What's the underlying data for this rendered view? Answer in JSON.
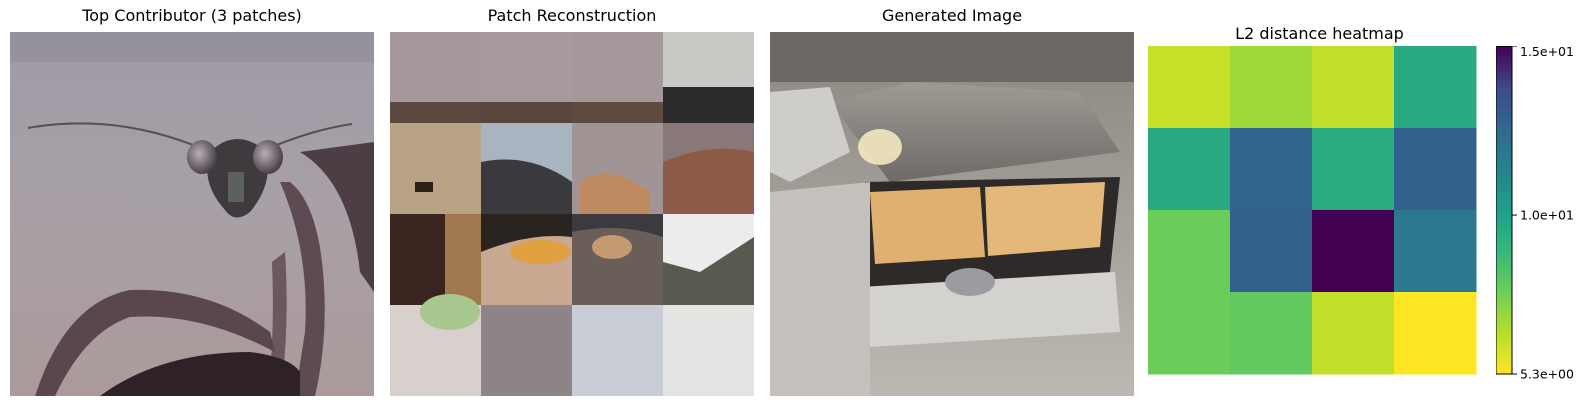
{
  "panels": {
    "top_contributor_title": "Top Contributor (3 patches)",
    "reconstruction_title": "Patch Reconstruction",
    "generated_title": "Generated Image",
    "heatmap_title": "L2 distance heatmap"
  },
  "chart_data": {
    "type": "heatmap",
    "title": "L2 distance heatmap",
    "rows": 4,
    "cols": 4,
    "values": [
      [
        6.2,
        6.9,
        6.3,
        9.6
      ],
      [
        9.6,
        12.7,
        9.5,
        12.9
      ],
      [
        7.8,
        12.9,
        15.0,
        11.8
      ],
      [
        7.8,
        8.0,
        6.3,
        5.3
      ]
    ],
    "colorbar": {
      "min": 5.3,
      "max": 15.0,
      "ticks": [
        "1.5e+01",
        "1.0e+01",
        "5.3e+00"
      ],
      "tick_values": [
        15.0,
        10.0,
        5.3
      ],
      "colormap": "viridis"
    }
  }
}
